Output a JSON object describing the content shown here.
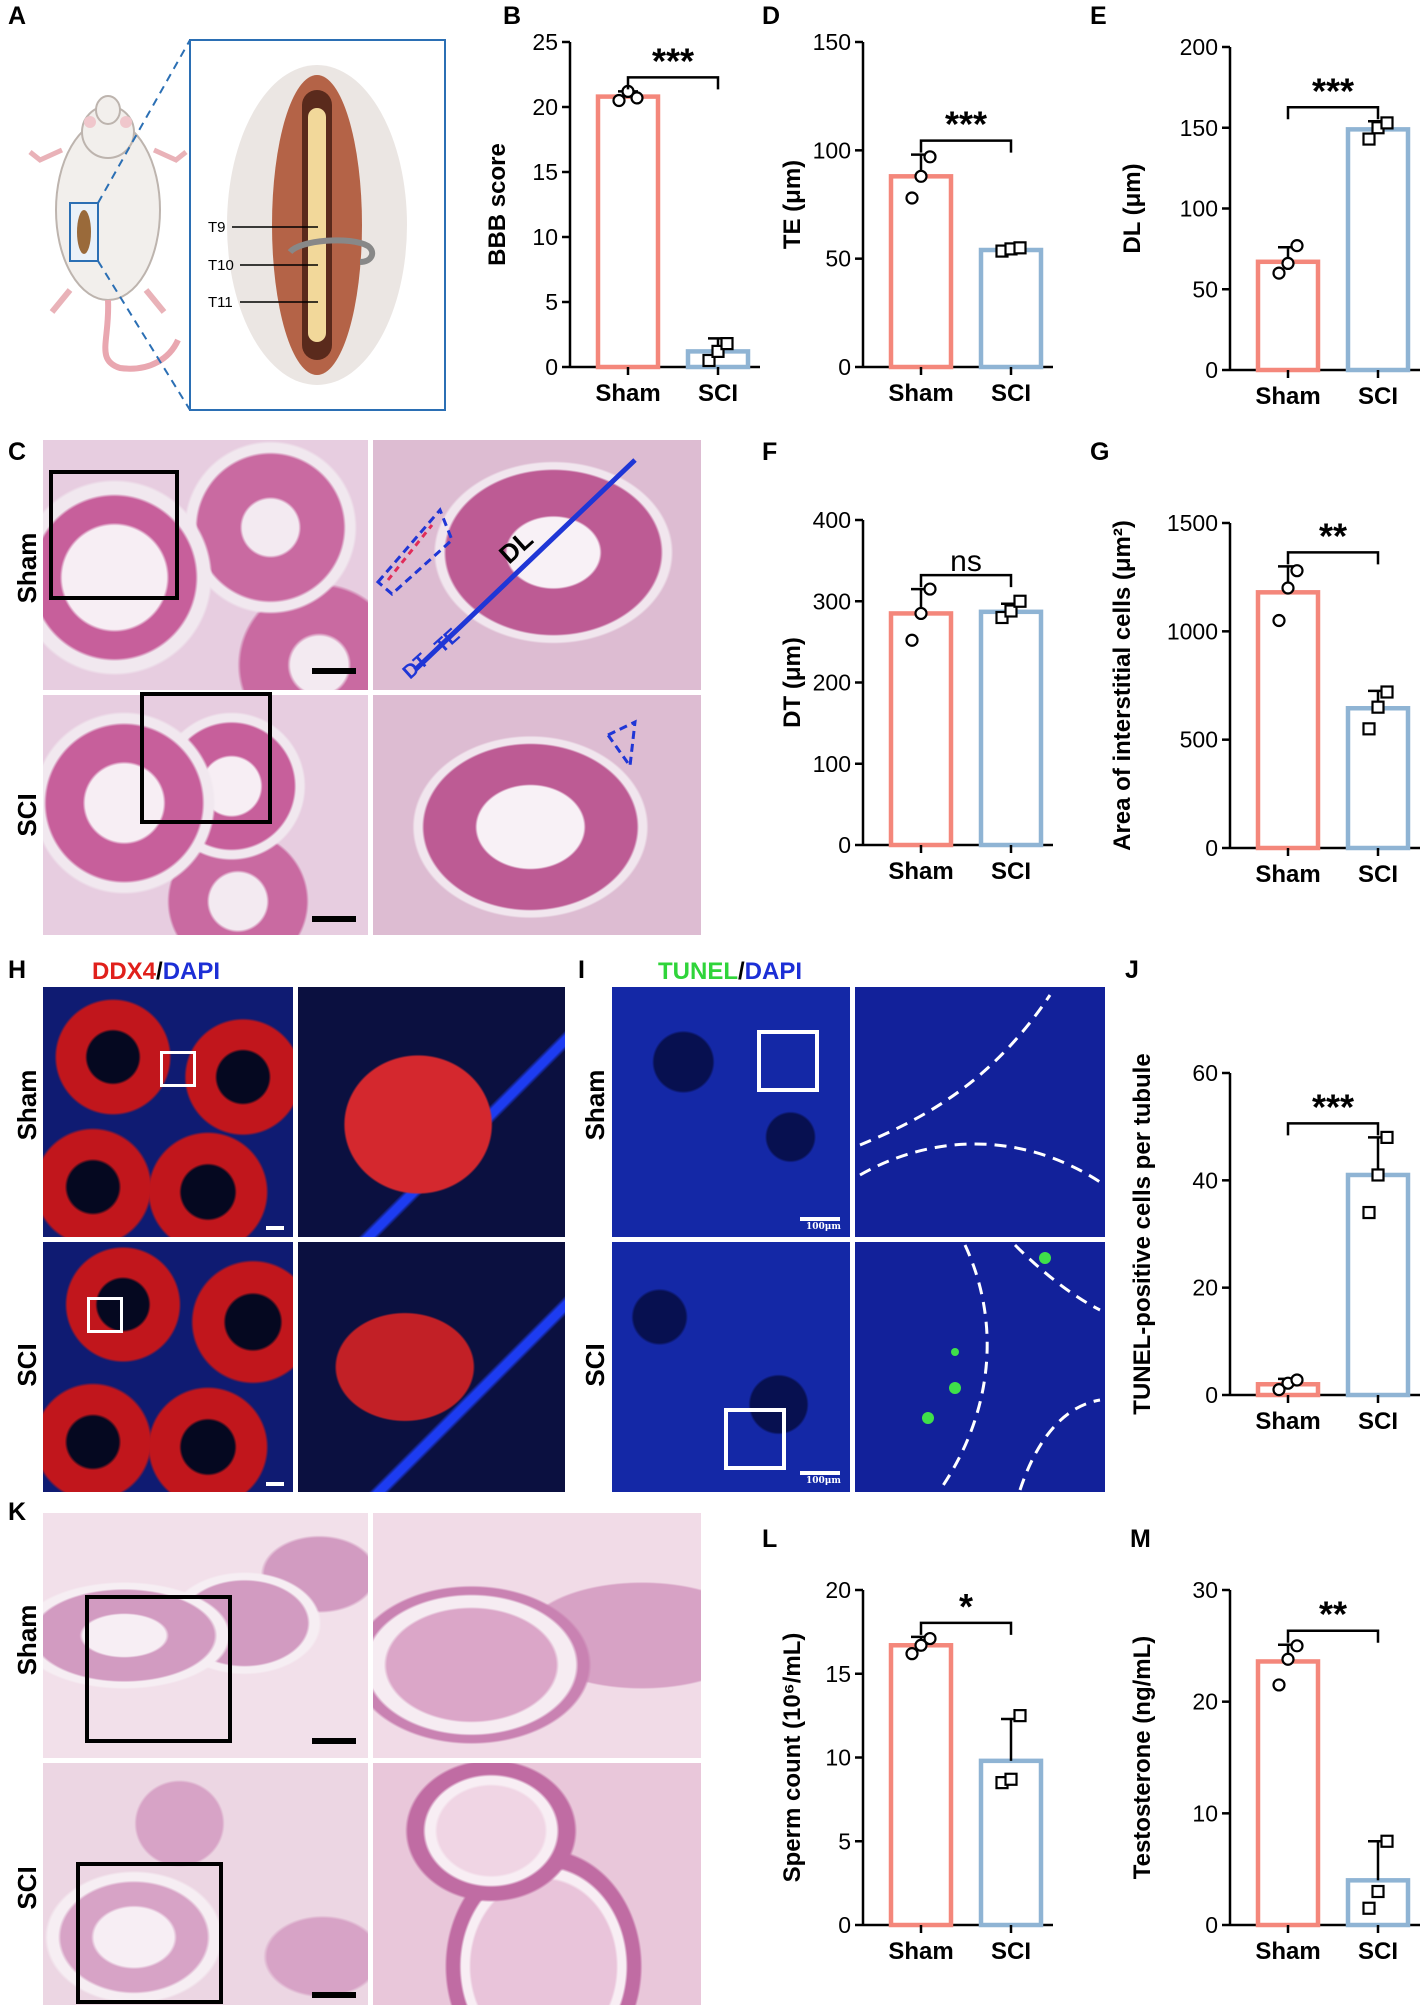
{
  "panel_letters": [
    "A",
    "B",
    "C",
    "D",
    "E",
    "F",
    "G",
    "H",
    "I",
    "J",
    "K",
    "L",
    "M"
  ],
  "schematic": {
    "vertebrae": [
      "T9",
      "T10",
      "T11"
    ]
  },
  "histology": {
    "rows": [
      "Sham",
      "SCI"
    ],
    "annotations": {
      "dt": "DT",
      "te": "TE",
      "dl": "DL"
    }
  },
  "fluorescence": {
    "ddx4_title": {
      "marker": "DDX4",
      "sep": "/",
      "counter": "DAPI"
    },
    "tunel_title": {
      "marker": "TUNEL",
      "sep": "/",
      "counter": "DAPI"
    },
    "scale_text": "100μm"
  },
  "colors": {
    "sham": "#f4877b",
    "sci": "#8fb4d4",
    "ddx4": "#e0201b",
    "tunel": "#2fd43a",
    "dapi": "#1c2fd6"
  },
  "chart_data": [
    {
      "id": "B",
      "type": "bar",
      "categories": [
        "Sham",
        "SCI"
      ],
      "values": [
        20.8,
        1.2
      ],
      "errors": [
        0.4,
        1.0
      ],
      "points": [
        [
          20.5,
          21.2,
          20.7
        ],
        [
          0.5,
          1.2,
          1.8
        ]
      ],
      "ylim": [
        0,
        25
      ],
      "yticks": [
        0,
        5,
        10,
        15,
        20,
        25
      ],
      "ylabel": "BBB score",
      "significance": "***"
    },
    {
      "id": "D",
      "type": "bar",
      "categories": [
        "Sham",
        "SCI"
      ],
      "values": [
        88,
        54
      ],
      "errors": [
        10,
        1.5
      ],
      "points": [
        [
          78,
          88,
          97
        ],
        [
          53.5,
          54.5,
          55
        ]
      ],
      "ylim": [
        0,
        150
      ],
      "yticks": [
        0,
        50,
        100,
        150
      ],
      "ylabel": "TE (μm)",
      "significance": "***"
    },
    {
      "id": "E",
      "type": "bar",
      "categories": [
        "Sham",
        "SCI"
      ],
      "values": [
        67,
        149
      ],
      "errors": [
        9,
        5
      ],
      "points": [
        [
          60,
          66,
          77
        ],
        [
          143,
          150,
          153
        ]
      ],
      "ylim": [
        0,
        200
      ],
      "yticks": [
        0,
        50,
        100,
        150,
        200
      ],
      "ylabel": "DL (μm)",
      "significance": "***"
    },
    {
      "id": "F",
      "type": "bar",
      "categories": [
        "Sham",
        "SCI"
      ],
      "values": [
        285,
        287
      ],
      "errors": [
        30,
        10
      ],
      "points": [
        [
          252,
          285,
          315
        ],
        [
          280,
          288,
          300
        ]
      ],
      "ylim": [
        0,
        400
      ],
      "yticks": [
        0,
        100,
        200,
        300,
        400
      ],
      "ylabel": "DT (μm)",
      "significance": "ns"
    },
    {
      "id": "G",
      "type": "bar",
      "categories": [
        "Sham",
        "SCI"
      ],
      "values": [
        1180,
        645
      ],
      "errors": [
        120,
        80
      ],
      "points": [
        [
          1050,
          1200,
          1280
        ],
        [
          550,
          650,
          720
        ]
      ],
      "ylim": [
        0,
        1500
      ],
      "yticks": [
        0,
        500,
        1000,
        1500
      ],
      "ylabel": "Area of interstitial cells (μm²)",
      "significance": "**"
    },
    {
      "id": "J",
      "type": "bar",
      "categories": [
        "Sham",
        "SCI"
      ],
      "values": [
        2.0,
        41
      ],
      "errors": [
        1.0,
        7
      ],
      "points": [
        [
          1.0,
          2.2,
          2.8
        ],
        [
          34,
          41,
          48
        ]
      ],
      "ylim": [
        0,
        60
      ],
      "yticks": [
        0,
        20,
        40,
        60
      ],
      "ylabel": "TUNEL-positive cells per tubule",
      "significance": "***"
    },
    {
      "id": "L",
      "type": "bar",
      "categories": [
        "Sham",
        "SCI"
      ],
      "values": [
        16.7,
        9.8
      ],
      "errors": [
        0.5,
        2.5
      ],
      "points": [
        [
          16.2,
          16.7,
          17.1
        ],
        [
          8.5,
          8.7,
          12.5
        ]
      ],
      "ylim": [
        0,
        20
      ],
      "yticks": [
        0,
        5,
        10,
        15,
        20
      ],
      "ylabel": "Sperm count (10⁶/mL)",
      "significance": "*"
    },
    {
      "id": "M",
      "type": "bar",
      "categories": [
        "Sham",
        "SCI"
      ],
      "values": [
        23.6,
        4.0
      ],
      "errors": [
        1.5,
        3.5
      ],
      "points": [
        [
          21.5,
          23.8,
          25.0
        ],
        [
          1.5,
          3.0,
          7.5
        ]
      ],
      "ylim": [
        0,
        30
      ],
      "yticks": [
        0,
        10,
        20,
        30
      ],
      "ylabel": "Testosterone (ng/mL)",
      "significance": "**"
    }
  ]
}
